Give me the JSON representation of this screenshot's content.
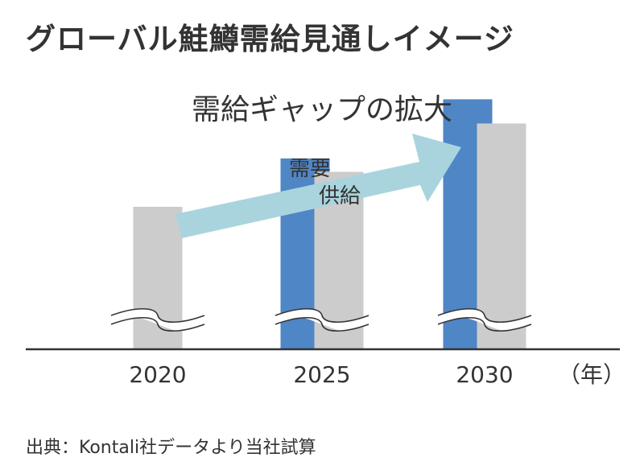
{
  "title": "グローバル鮭鱒需給見通しイメージ",
  "source": "出典：Kontali社データより当社試算",
  "colors": {
    "demand": "#4F86C6",
    "supply": "#CCCCCC",
    "arrow": "#A9D4DD",
    "axis": "#333333"
  },
  "chart_data": {
    "type": "bar",
    "categories": [
      "2020",
      "2025",
      "2030"
    ],
    "series": [
      {
        "name": "需要",
        "color": "#4F86C6",
        "values": [
          null,
          71,
          93
        ]
      },
      {
        "name": "供給",
        "color": "#CCCCCC",
        "values": [
          53,
          66,
          84
        ]
      }
    ],
    "annotation": "需給ギャップの拡大",
    "xlabel": "（年）",
    "ylabel": "",
    "ylim": [
      0,
      100
    ],
    "axis_break": true,
    "grid": false
  }
}
